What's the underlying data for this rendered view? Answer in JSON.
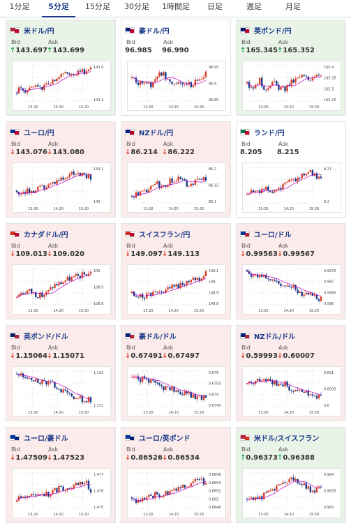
{
  "tabs": [
    "1分足",
    "5分足",
    "15分足",
    "30分足",
    "1時間足",
    "日足",
    "週足",
    "月足"
  ],
  "active_tab": 1,
  "labels": {
    "bid": "Bid",
    "ask": "Ask"
  },
  "colors": {
    "up_bg": "#eaf3e7",
    "down_bg": "#fbeceb",
    "up_arrow": "#1aa64a",
    "down_arrow": "#d9402b",
    "candle_up": "#d9402b",
    "candle_down": "#1a3a8a",
    "ma": "#c000c0"
  },
  "x_ticks": [
    "13:20",
    "14:20",
    "15:20"
  ],
  "pairs": [
    {
      "name": "米ドル/円",
      "flag": "us-jp",
      "state": "up",
      "bid": "143.697",
      "ask": "143.699",
      "dir": "up",
      "y_ticks": [
        "143.6",
        "143.4"
      ],
      "trend": [
        0.3,
        0.35,
        0.3,
        0.4,
        0.35,
        0.5,
        0.55,
        0.7,
        0.75,
        0.8,
        0.78,
        0.85,
        0.9
      ]
    },
    {
      "name": "豪ドル/円",
      "flag": "au-jp",
      "state": "neutral",
      "bid": "96.985",
      "ask": "96.990",
      "dir": "none",
      "y_ticks": [
        "96.95",
        "96.9",
        "96.85"
      ],
      "trend": [
        0.6,
        0.5,
        0.55,
        0.45,
        0.7,
        0.8,
        0.6,
        0.5,
        0.55,
        0.45,
        0.5,
        0.6,
        0.75
      ]
    },
    {
      "name": "英ポンド/円",
      "flag": "gb-jp",
      "state": "up",
      "bid": "165.345",
      "ask": "165.352",
      "dir": "up",
      "y_ticks": [
        "165.4",
        "165.35",
        "165.3",
        "165.25"
      ],
      "trend": [
        0.5,
        0.4,
        0.6,
        0.35,
        0.55,
        0.4,
        0.3,
        0.5,
        0.6,
        0.7,
        0.6,
        0.75,
        0.8
      ]
    },
    {
      "name": "ユーロ/円",
      "flag": "eu-jp",
      "state": "down",
      "bid": "143.076",
      "ask": "143.080",
      "dir": "down",
      "y_ticks": [
        "143.1",
        "143"
      ],
      "trend": [
        0.3,
        0.35,
        0.3,
        0.35,
        0.45,
        0.5,
        0.6,
        0.7,
        0.75,
        0.8,
        0.8,
        0.75,
        0.7
      ]
    },
    {
      "name": "NZドル/円",
      "flag": "nz-jp",
      "state": "down",
      "bid": "86.214",
      "ask": "86.222",
      "dir": "down",
      "y_ticks": [
        "86.2",
        "86.15",
        "86.1"
      ],
      "trend": [
        0.2,
        0.25,
        0.3,
        0.45,
        0.55,
        0.4,
        0.6,
        0.7,
        0.65,
        0.5,
        0.6,
        0.7,
        0.65
      ]
    },
    {
      "name": "ランド/円",
      "flag": "za-jp",
      "state": "neutral",
      "bid": "8.205",
      "ask": "8.215",
      "dir": "none",
      "y_ticks": [
        "8.21",
        "8.2"
      ],
      "trend": [
        0.3,
        0.35,
        0.3,
        0.4,
        0.35,
        0.45,
        0.5,
        0.6,
        0.7,
        0.85,
        0.9,
        0.75,
        0.7
      ]
    },
    {
      "name": "カナダドル/円",
      "flag": "ca-jp",
      "state": "down",
      "bid": "109.013",
      "ask": "109.020",
      "dir": "down",
      "y_ticks": [
        "109",
        "108.9",
        "108.8"
      ],
      "trend": [
        0.3,
        0.35,
        0.4,
        0.3,
        0.25,
        0.35,
        0.55,
        0.6,
        0.7,
        0.75,
        0.8,
        0.85,
        0.9
      ]
    },
    {
      "name": "スイスフラン/円",
      "flag": "ch-jp",
      "state": "down",
      "bid": "149.097",
      "ask": "149.113",
      "dir": "down",
      "y_ticks": [
        "149.1",
        "149",
        "148.9",
        "148.8"
      ],
      "trend": [
        0.3,
        0.25,
        0.2,
        0.3,
        0.35,
        0.4,
        0.45,
        0.5,
        0.55,
        0.6,
        0.7,
        0.75,
        0.9
      ]
    },
    {
      "name": "ユーロ/ドル",
      "flag": "eu-us",
      "state": "down",
      "bid": "0.99563",
      "ask": "0.99567",
      "dir": "down",
      "y_ticks": [
        "0.9975",
        "0.997",
        "0.9965",
        "0.996"
      ],
      "trend": [
        0.9,
        0.85,
        0.8,
        0.75,
        0.7,
        0.6,
        0.55,
        0.5,
        0.45,
        0.3,
        0.35,
        0.25,
        0.15
      ]
    },
    {
      "name": "英ポンド/ドル",
      "flag": "gb-us",
      "state": "down",
      "bid": "1.15064",
      "ask": "1.15071",
      "dir": "down",
      "y_ticks": [
        "1.152",
        "1.151"
      ],
      "trend": [
        0.9,
        0.85,
        0.85,
        0.75,
        0.7,
        0.65,
        0.6,
        0.5,
        0.4,
        0.3,
        0.25,
        0.2,
        0.2
      ]
    },
    {
      "name": "豪ドル/ドル",
      "flag": "au-us",
      "state": "down",
      "bid": "0.67491",
      "ask": "0.67497",
      "dir": "down",
      "y_ticks": [
        "0.676",
        "0.6755",
        "0.675",
        "0.6745"
      ],
      "trend": [
        0.85,
        0.8,
        0.75,
        0.7,
        0.6,
        0.5,
        0.55,
        0.45,
        0.4,
        0.35,
        0.3,
        0.25,
        0.3
      ]
    },
    {
      "name": "NZドル/ドル",
      "flag": "nz-us",
      "state": "down",
      "bid": "0.59993",
      "ask": "0.60007",
      "dir": "down",
      "y_ticks": [
        "0.601",
        "0.6005",
        "0.6"
      ],
      "trend": [
        0.7,
        0.65,
        0.75,
        0.8,
        0.7,
        0.6,
        0.65,
        0.5,
        0.45,
        0.35,
        0.4,
        0.3,
        0.35
      ]
    },
    {
      "name": "ユーロ/豪ドル",
      "flag": "eu-au",
      "state": "down",
      "bid": "1.47509",
      "ask": "1.47523",
      "dir": "down",
      "y_ticks": [
        "1.477",
        "1.476",
        "1.475"
      ],
      "trend": [
        0.3,
        0.35,
        0.3,
        0.4,
        0.45,
        0.4,
        0.5,
        0.55,
        0.6,
        0.65,
        0.7,
        0.8,
        0.45
      ]
    },
    {
      "name": "ユーロ/英ポンド",
      "flag": "eu-gb",
      "state": "down",
      "bid": "0.86526",
      "ask": "0.86534",
      "dir": "down",
      "y_ticks": [
        "0.8656",
        "0.8654",
        "0.8652",
        "0.865",
        "0.8648"
      ],
      "trend": [
        0.2,
        0.25,
        0.3,
        0.35,
        0.4,
        0.35,
        0.45,
        0.5,
        0.6,
        0.65,
        0.75,
        0.8,
        0.7
      ]
    },
    {
      "name": "米ドル/スイスフラン",
      "flag": "us-ch",
      "state": "up",
      "bid": "0.96373",
      "ask": "0.96388",
      "dir": "up",
      "y_ticks": [
        "0.964",
        "0.9635",
        "0.963"
      ],
      "trend": [
        0.2,
        0.25,
        0.3,
        0.4,
        0.5,
        0.6,
        0.7,
        0.8,
        0.75,
        0.65,
        0.55,
        0.5,
        0.55
      ]
    }
  ]
}
